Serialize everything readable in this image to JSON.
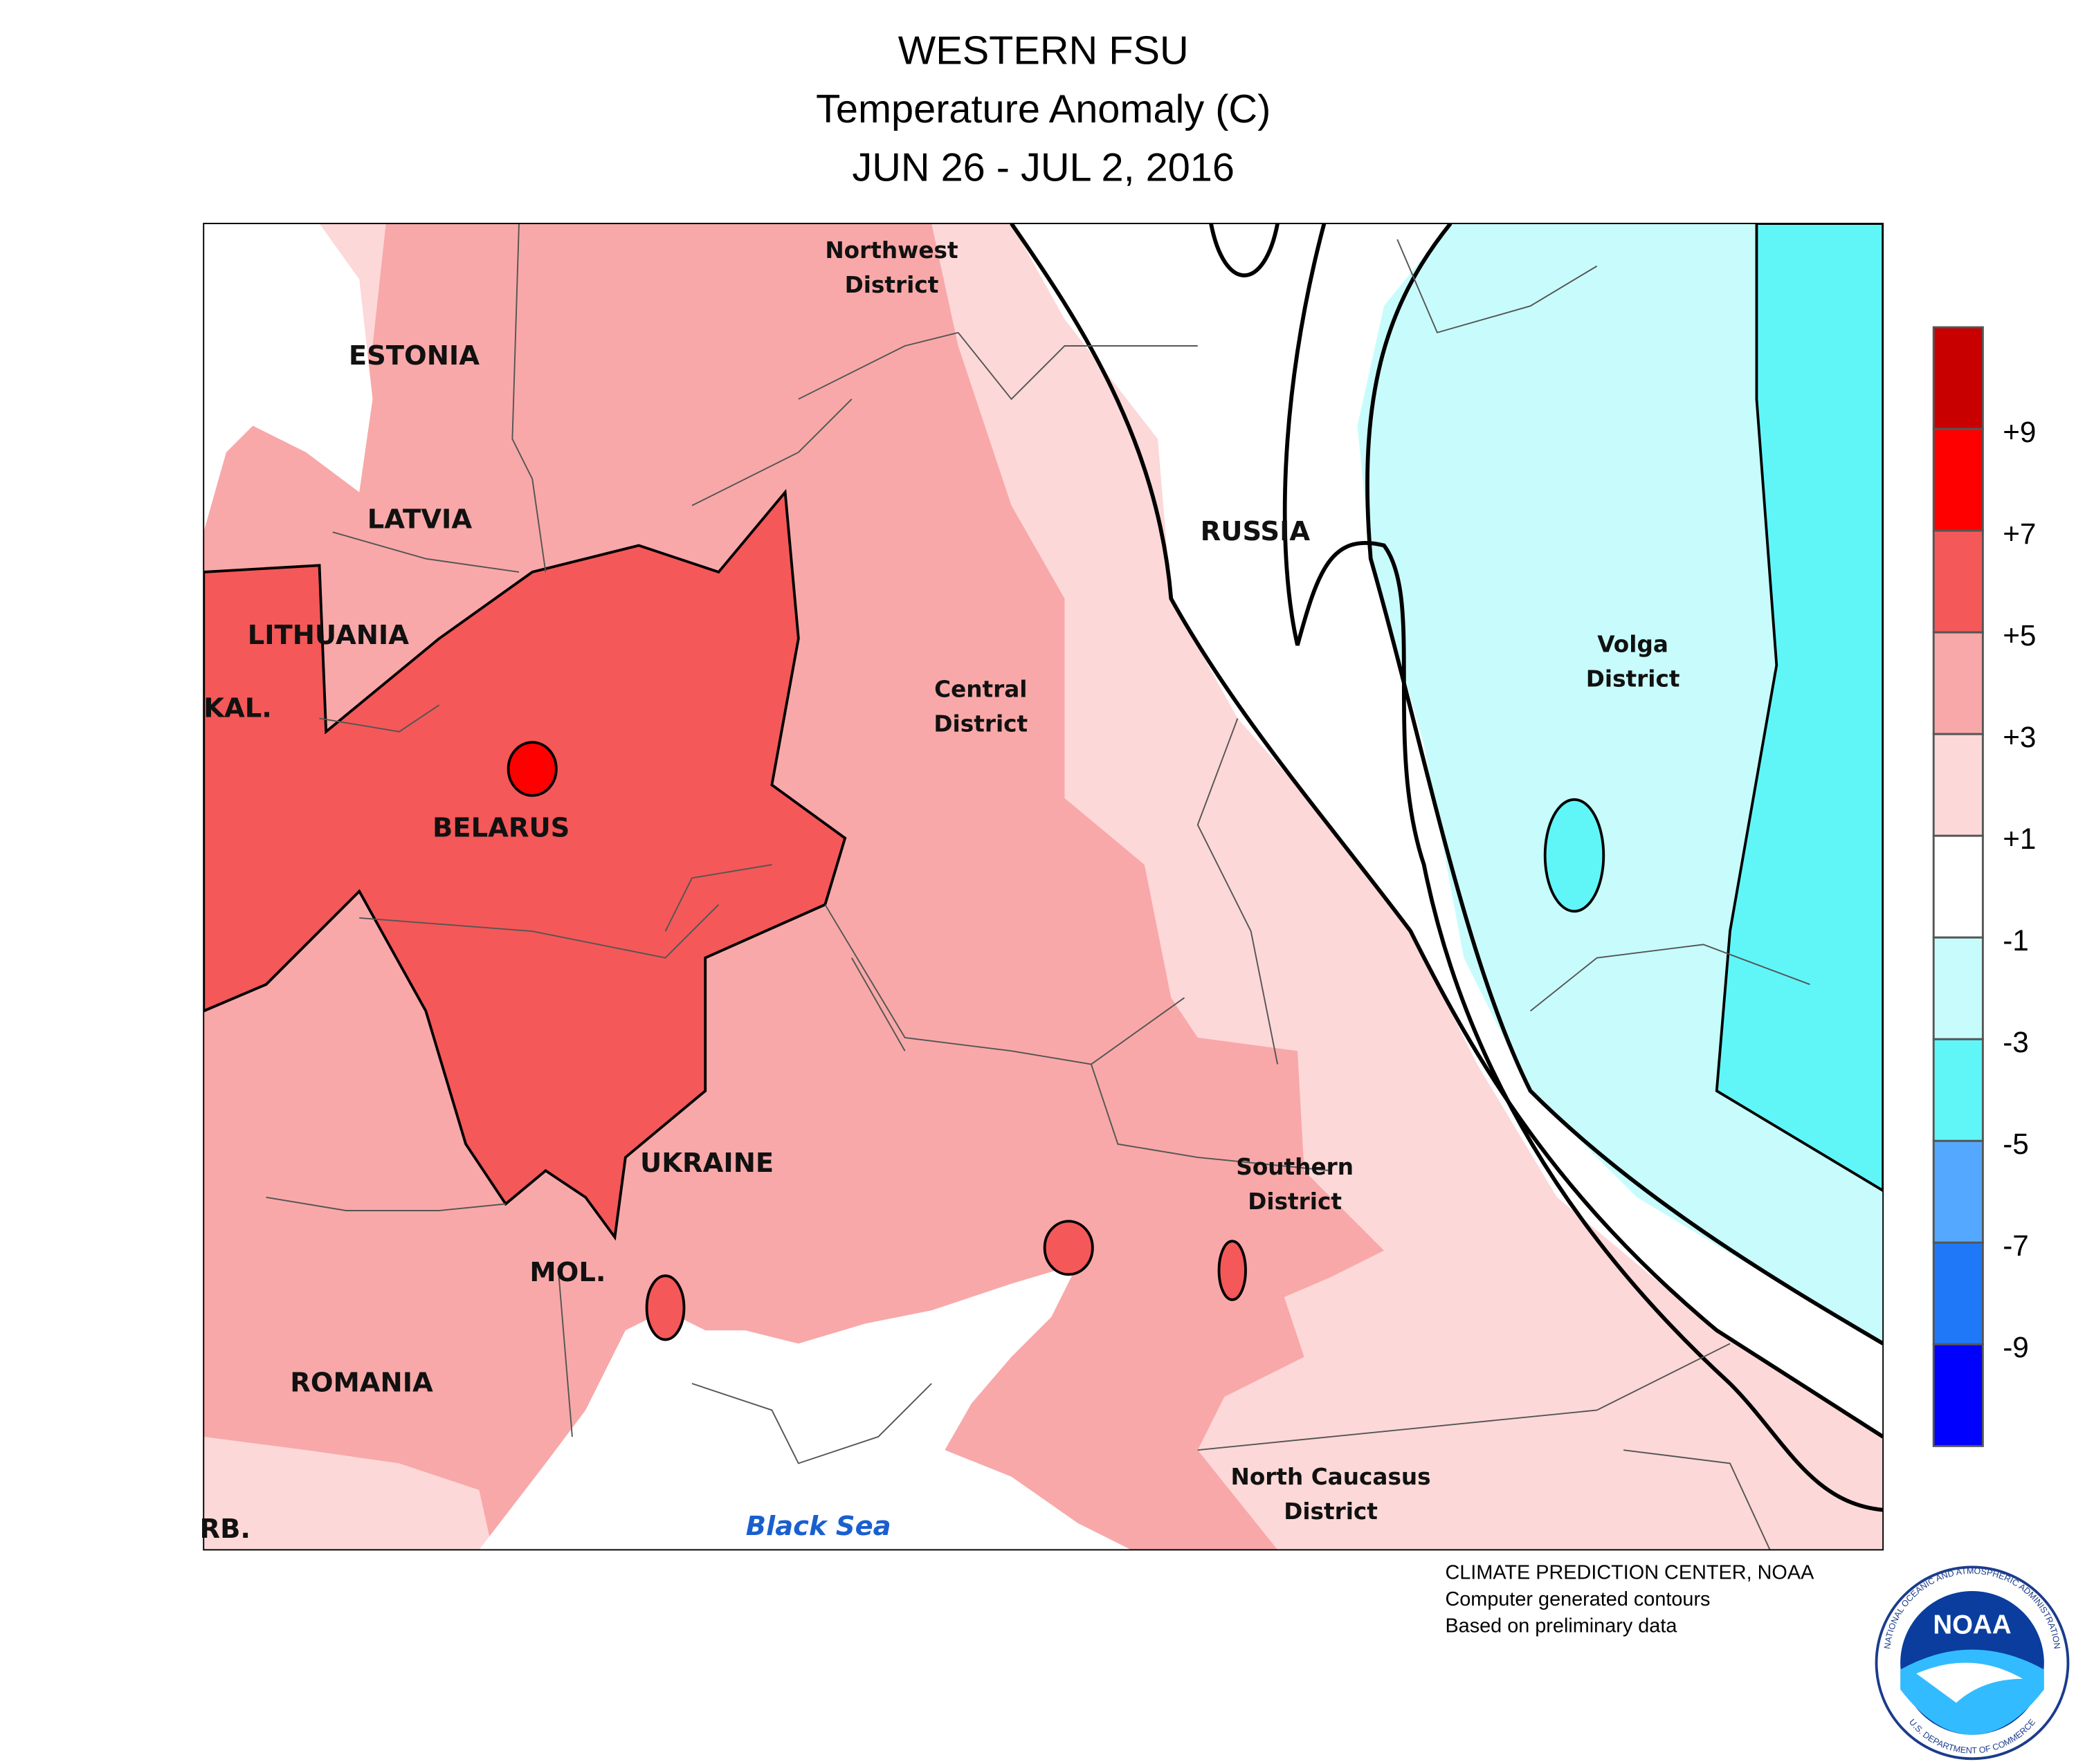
{
  "header": {
    "title": "WESTERN FSU",
    "subtitle": "Temperature Anomaly (C)",
    "period": "JUN 26 - JUL 2, 2016"
  },
  "labels": {
    "countries": [
      "ESTONIA",
      "LATVIA",
      "LITHUANIA",
      "KAL.",
      "BELARUS",
      "UKRAINE",
      "MOL.",
      "ROMANIA",
      "RB.",
      "RUSSIA"
    ],
    "districts": [
      {
        "lines": [
          "Northwest",
          "District"
        ]
      },
      {
        "lines": [
          "Central",
          "District"
        ]
      },
      {
        "lines": [
          "Volga",
          "District"
        ]
      },
      {
        "lines": [
          "Southern",
          "District"
        ]
      },
      {
        "lines": [
          "North Caucasus",
          "District"
        ]
      }
    ],
    "sea": "Black Sea"
  },
  "legend": {
    "colors": [
      "#c80000",
      "#ff0000",
      "#f45858",
      "#f8a8a8",
      "#fdd8d8",
      "#ffffff",
      "#c8fcfc",
      "#60f6f8",
      "#55a8ff",
      "#1f78f8",
      "#0000ff"
    ],
    "labels": [
      "+9",
      "+7",
      "+5",
      "+3",
      "+1",
      "-1",
      "-3",
      "-5",
      "-7",
      "-9"
    ]
  },
  "credits": [
    "CLIMATE PREDICTION CENTER, NOAA",
    "Computer generated contours",
    "Based on preliminary data"
  ],
  "logo": {
    "text": "NOAA",
    "ring_top": "NATIONAL OCEANIC AND ATMOSPHERIC ADMINISTRATION",
    "ring_bottom": "U.S. DEPARTMENT OF COMMERCE"
  }
}
